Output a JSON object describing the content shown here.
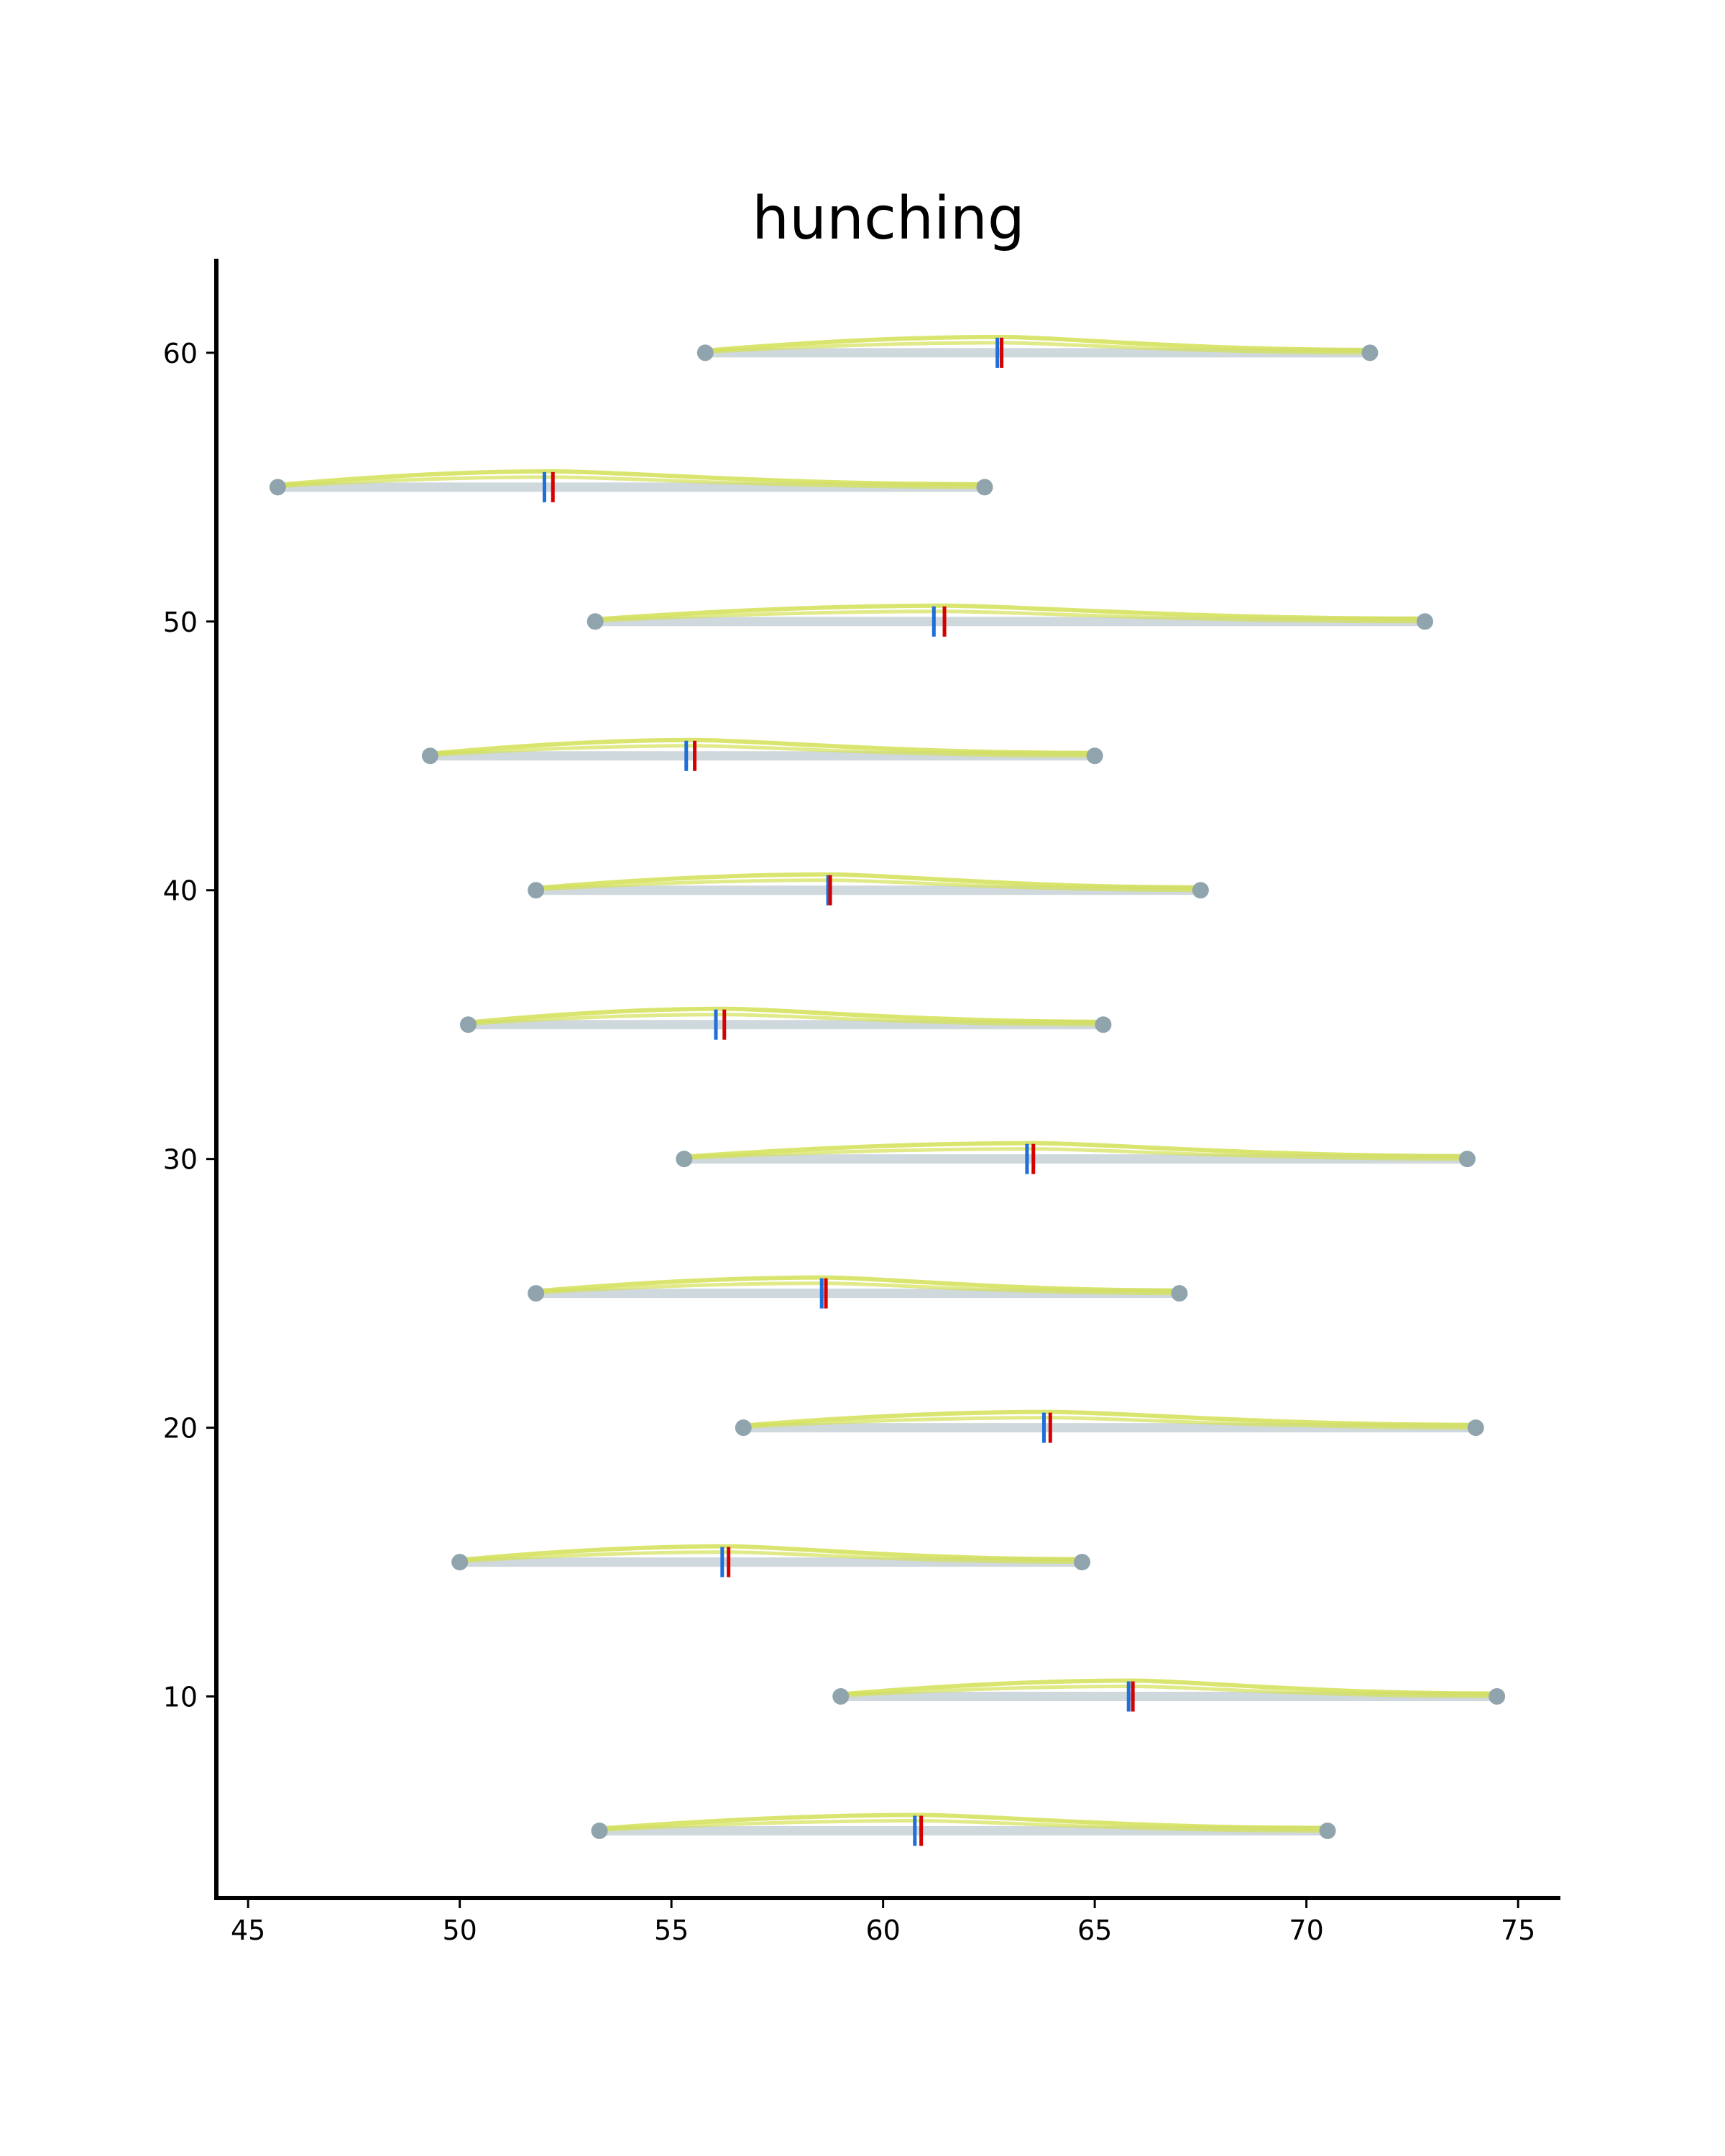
{
  "chart_data": {
    "type": "range_violin",
    "title": "hunching",
    "xlabel": "",
    "ylabel": "",
    "xlim": [
      44.25,
      76.0
    ],
    "ylim": [
      2.5,
      63.5
    ],
    "xticks": [
      45,
      50,
      55,
      60,
      65,
      70,
      75
    ],
    "yticks": [
      10,
      20,
      30,
      40,
      50,
      60
    ],
    "grid": false,
    "colors": {
      "range_line": "#cfd8dc",
      "endpoint": "#90a4ae",
      "density": "#d4e157",
      "mean_marker": "#1e6fd9",
      "median_marker": "#d50000",
      "axis": "#000000"
    },
    "rows": [
      {
        "y": 5,
        "min": 53.3,
        "max": 70.5,
        "mean": 60.75,
        "median": 60.9
      },
      {
        "y": 10,
        "min": 59.0,
        "max": 74.5,
        "mean": 65.8,
        "median": 65.9
      },
      {
        "y": 15,
        "min": 50.0,
        "max": 64.7,
        "mean": 56.2,
        "median": 56.35
      },
      {
        "y": 20,
        "min": 56.7,
        "max": 74.0,
        "mean": 63.8,
        "median": 63.95
      },
      {
        "y": 25,
        "min": 51.8,
        "max": 67.0,
        "mean": 58.55,
        "median": 58.65
      },
      {
        "y": 30,
        "min": 55.3,
        "max": 73.8,
        "mean": 63.4,
        "median": 63.55
      },
      {
        "y": 35,
        "min": 50.2,
        "max": 65.2,
        "mean": 56.05,
        "median": 56.25
      },
      {
        "y": 40,
        "min": 51.8,
        "max": 67.5,
        "mean": 58.7,
        "median": 58.75
      },
      {
        "y": 45,
        "min": 49.3,
        "max": 65.0,
        "mean": 55.35,
        "median": 55.55
      },
      {
        "y": 50,
        "min": 53.2,
        "max": 72.8,
        "mean": 61.2,
        "median": 61.45
      },
      {
        "y": 55,
        "min": 45.7,
        "max": 62.4,
        "mean": 52.0,
        "median": 52.2
      },
      {
        "y": 60,
        "min": 55.8,
        "max": 71.5,
        "mean": 62.7,
        "median": 62.8
      }
    ]
  }
}
